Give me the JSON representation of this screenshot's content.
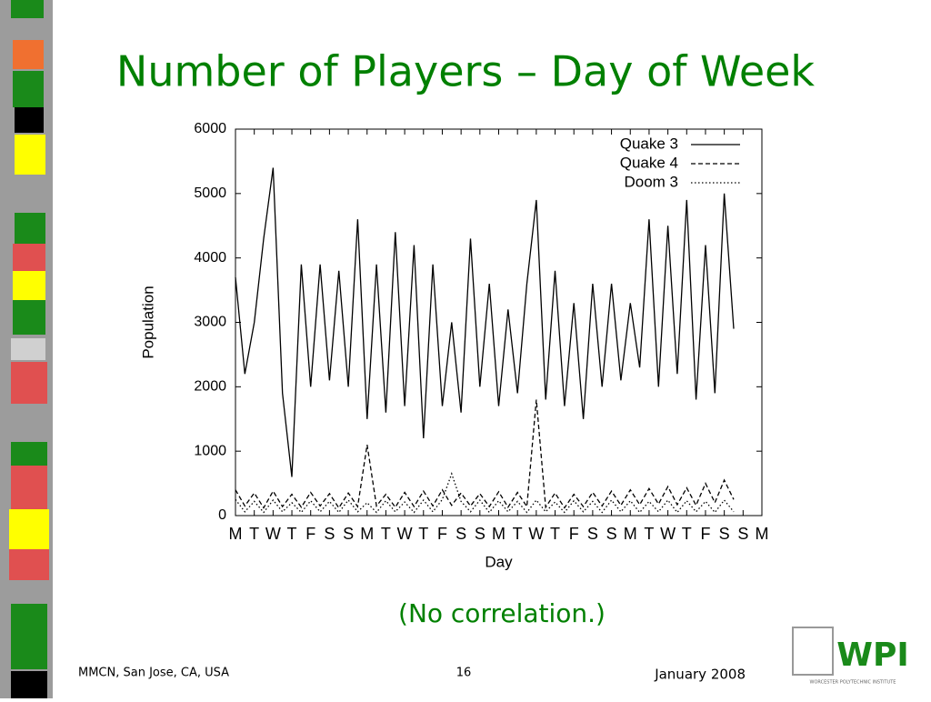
{
  "slide": {
    "title": "Number of Players – Day of Week",
    "note": "(No correlation.)",
    "footer_left": "MMCN, San Jose, CA, USA",
    "page": "16",
    "footer_right": "January 2008",
    "logo": "WPI",
    "logo_caption": "WORCESTER POLYTECHNIC INSTITUTE"
  },
  "chart_data": {
    "type": "line",
    "xlabel": "Day",
    "ylabel": "Population",
    "x": [
      0,
      0.5,
      1,
      1.5,
      2,
      2.5,
      3,
      3.5,
      4,
      4.5,
      5,
      5.5,
      6,
      6.5,
      7,
      7.5,
      8,
      8.5,
      9,
      9.5,
      10,
      10.5,
      11,
      11.5,
      12,
      12.5,
      13,
      13.5,
      14,
      14.5,
      15,
      15.5,
      16,
      16.5,
      17,
      17.5,
      18,
      18.5,
      19,
      19.5,
      20,
      20.5,
      21,
      21.5,
      22,
      22.5,
      23,
      23.5,
      24,
      24.5,
      25,
      25.5,
      26,
      26.5
    ],
    "series": [
      {
        "name": "Quake 3",
        "color": "#000000",
        "dash": "none",
        "values": [
          3700,
          2200,
          3000,
          4300,
          5400,
          1900,
          600,
          3900,
          2000,
          3900,
          2100,
          3800,
          2000,
          4600,
          1500,
          3900,
          1600,
          4400,
          1700,
          4200,
          1200,
          3900,
          1700,
          3000,
          1600,
          4300,
          2000,
          3600,
          1700,
          3200,
          1900,
          3600,
          4900,
          1800,
          3800,
          1700,
          3300,
          1500,
          3600,
          2000,
          3600,
          2100,
          3300,
          2300,
          4600,
          2000,
          4500,
          2200,
          4900,
          1800,
          4200,
          1900,
          5000,
          2900
        ]
      },
      {
        "name": "Quake 4",
        "color": "#000000",
        "dash": "5,3",
        "values": [
          400,
          150,
          350,
          120,
          380,
          140,
          330,
          130,
          360,
          150,
          340,
          120,
          350,
          140,
          1100,
          150,
          330,
          130,
          360,
          140,
          380,
          150,
          400,
          160,
          350,
          150,
          340,
          140,
          370,
          130,
          360,
          140,
          1800,
          130,
          350,
          120,
          330,
          140,
          360,
          150,
          380,
          160,
          400,
          170,
          420,
          180,
          450,
          170,
          430,
          160,
          500,
          200,
          550,
          250
        ]
      },
      {
        "name": "Doom 3",
        "color": "#000000",
        "dash": "1.5,2.5",
        "values": [
          250,
          60,
          220,
          50,
          240,
          60,
          200,
          50,
          230,
          60,
          220,
          50,
          240,
          60,
          200,
          50,
          230,
          60,
          210,
          50,
          240,
          60,
          250,
          650,
          220,
          60,
          240,
          50,
          230,
          60,
          220,
          50,
          240,
          60,
          210,
          50,
          230,
          60,
          220,
          50,
          240,
          60,
          230,
          50,
          220,
          60,
          240,
          50,
          230,
          60,
          220,
          50,
          240,
          60
        ]
      }
    ],
    "xlim": [
      0,
      28
    ],
    "ylim": [
      0,
      6000
    ],
    "yticks": [
      0,
      1000,
      2000,
      3000,
      4000,
      5000,
      6000
    ],
    "xticks": [
      {
        "value": 0,
        "label": "M"
      },
      {
        "value": 1,
        "label": "T"
      },
      {
        "value": 2,
        "label": "W"
      },
      {
        "value": 3,
        "label": "T"
      },
      {
        "value": 4,
        "label": "F"
      },
      {
        "value": 5,
        "label": "S"
      },
      {
        "value": 6,
        "label": "S"
      },
      {
        "value": 7,
        "label": "M"
      },
      {
        "value": 8,
        "label": "T"
      },
      {
        "value": 9,
        "label": "W"
      },
      {
        "value": 10,
        "label": "T"
      },
      {
        "value": 11,
        "label": "F"
      },
      {
        "value": 12,
        "label": "S"
      },
      {
        "value": 13,
        "label": "S"
      },
      {
        "value": 14,
        "label": "M"
      },
      {
        "value": 15,
        "label": "T"
      },
      {
        "value": 16,
        "label": "W"
      },
      {
        "value": 17,
        "label": "T"
      },
      {
        "value": 18,
        "label": "F"
      },
      {
        "value": 19,
        "label": "S"
      },
      {
        "value": 20,
        "label": "S"
      },
      {
        "value": 21,
        "label": "M"
      },
      {
        "value": 22,
        "label": "T"
      },
      {
        "value": 23,
        "label": "W"
      },
      {
        "value": 24,
        "label": "T"
      },
      {
        "value": 25,
        "label": "F"
      },
      {
        "value": 26,
        "label": "S"
      },
      {
        "value": 27,
        "label": "S"
      },
      {
        "value": 28,
        "label": "M"
      }
    ],
    "legend": "upper-right"
  }
}
